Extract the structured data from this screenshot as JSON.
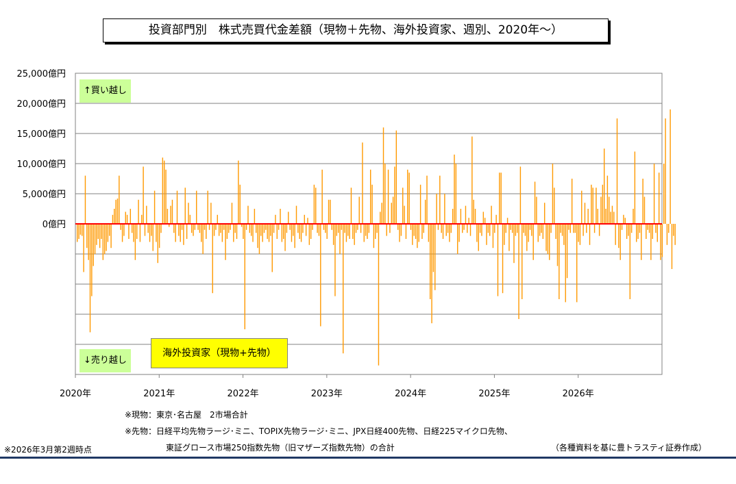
{
  "title": "投資部門別　株式売買代金差額（現物＋先物、海外投資家、週別、2020年～）",
  "badges": {
    "buy": "↑買い越し",
    "sell": "↓売り越し"
  },
  "series_label": "海外投資家（現物+先物）",
  "notes": {
    "spot": "※現物：東京･名古屋　2市場合計",
    "futures_line1": "※先物：日経平均先物ラージ･ミニ、TOPIX先物ラージ･ミニ、JPX日経400先物、日経225マイクロ先物、",
    "futures_line2": "東証グロース市場250指数先物（旧マザーズ指数先物）の合計",
    "as_of": "※2026年3月第2週時点",
    "source": "（各種資料を基に豊トラスティ証券作成）"
  },
  "colors": {
    "bars": "#ff9900",
    "zero_line": "#ff0000",
    "grid": "#808080",
    "badge": "#ccff99",
    "label_box": "#ffff00"
  },
  "chart_data": {
    "type": "bar",
    "title": "投資部門別　株式売買代金差額（現物＋先物、海外投資家、週別、2020年～）",
    "ylabel": "",
    "xlabel": "",
    "ylim": [
      -25000,
      25000
    ],
    "y_tick_labels": [
      {
        "value": 25000,
        "label": "25,000億円"
      },
      {
        "value": 20000,
        "label": "20,000億円"
      },
      {
        "value": 15000,
        "label": "15,000億円"
      },
      {
        "value": 10000,
        "label": "10,000億円"
      },
      {
        "value": 5000,
        "label": "5,000億円"
      },
      {
        "value": 0,
        "label": "0億円"
      },
      {
        "value": -5000,
        "label": ""
      },
      {
        "value": -10000,
        "label": ""
      },
      {
        "value": -15000,
        "label": ""
      },
      {
        "value": -20000,
        "label": ""
      },
      {
        "value": -25000,
        "label": ""
      }
    ],
    "x_tick_labels": [
      {
        "year": 2020,
        "label": "2020年"
      },
      {
        "year": 2021,
        "label": "2021年"
      },
      {
        "year": 2022,
        "label": "2022年"
      },
      {
        "year": 2023,
        "label": "2023年"
      },
      {
        "year": 2024,
        "label": "2024年"
      },
      {
        "year": 2025,
        "label": "2025年"
      },
      {
        "year": 2026,
        "label": "2026年"
      }
    ],
    "x_start": "2020-01",
    "x_end": "2027-01",
    "grid": true,
    "series": [
      {
        "name": "海外投資家（現物+先物）",
        "frequency": "weekly",
        "start": "2020-01 week 1",
        "values": [
          -3000,
          -2500,
          -1800,
          -2000,
          -8000,
          8000,
          -4000,
          -6000,
          -18000,
          -12000,
          -7000,
          -5000,
          -3500,
          -2500,
          -4000,
          -2500,
          -6000,
          -5000,
          -4500,
          -3000,
          -2000,
          -4000,
          1500,
          2500,
          4000,
          4200,
          8000,
          -1000,
          -3000,
          -2000,
          2000,
          1500,
          -2500,
          2500,
          -1500,
          -3000,
          -6000,
          -2500,
          4000,
          -3000,
          1500,
          9500,
          -2000,
          3000,
          -1500,
          -3000,
          -2000,
          -4500,
          5500,
          -3000,
          -6500,
          -4000,
          -1500,
          11000,
          10500,
          9000,
          2500,
          -500,
          3000,
          4000,
          -1500,
          -3000,
          5500,
          -2000,
          -3000,
          -1000,
          -3500,
          6000,
          -2500,
          3500,
          1500,
          -1500,
          -2000,
          -1000,
          5500,
          -1000,
          -1500,
          -3000,
          -5000,
          -1000,
          -2500,
          5500,
          -1000,
          3500,
          -11500,
          -2000,
          -1000,
          1500,
          -2000,
          -1500,
          -3000,
          -1000,
          -6000,
          -2500,
          -1500,
          -1000,
          3500,
          -3000,
          -1500,
          -2500,
          10500,
          6500,
          -500,
          -2500,
          -17500,
          -1000,
          3000,
          -1500,
          -2000,
          -3000,
          2500,
          -1500,
          -4000,
          -5000,
          -2000,
          -3000,
          -1500,
          -1000,
          -2500,
          -3000,
          -2000,
          -8000,
          -1500,
          1500,
          -2500,
          -1000,
          2500,
          -3000,
          -2500,
          -4500,
          -1500,
          2000,
          -1000,
          -3000,
          -2000,
          -4000,
          3000,
          -1500,
          -2500,
          -3000,
          -1500,
          1500,
          -2000,
          1000,
          -3500,
          -2500,
          -1000,
          6500,
          6000,
          -1500,
          -2000,
          -17000,
          9000,
          -1000,
          -1500,
          -2500,
          4000,
          4000,
          -1000,
          -3500,
          -12000,
          -2000,
          -1500,
          -5000,
          -1000,
          -21500,
          -1500,
          -3000,
          -2000,
          -2500,
          6000,
          -2500,
          -3500,
          -1500,
          -1000,
          4500,
          -1500,
          13500,
          -3000,
          -2000,
          -2500,
          -1500,
          9000,
          6500,
          -4000,
          -2500,
          -1500,
          -23500,
          2000,
          3500,
          16000,
          10000,
          -2000,
          9000,
          -1500,
          3500,
          4500,
          9500,
          15500,
          -1000,
          -3000,
          -2000,
          6000,
          3000,
          -2500,
          9000,
          8500,
          -1000,
          -3500,
          -2000,
          -2500,
          -4000,
          -3000,
          6500,
          -2500,
          -1500,
          4000,
          8000,
          -3000,
          -12500,
          -16500,
          -8000,
          -11000,
          5000,
          -1000,
          8000,
          -1500,
          -2500,
          5000,
          -2000,
          -1500,
          -3000,
          -1500,
          2500,
          11500,
          10000,
          -5000,
          -3000,
          2500,
          -1500,
          -1000,
          3000,
          -1500,
          1000,
          -2000,
          14500,
          4000,
          2500,
          -3000,
          -4500,
          -1500,
          -2000,
          2000,
          1000,
          -3500,
          -1500,
          -2000,
          3000,
          -4000,
          -1500,
          1500,
          -12000,
          8500,
          8500,
          -11500,
          -3500,
          -1500,
          1000,
          -4500,
          -1000,
          -1500,
          -6500,
          -2000,
          -1500,
          -15800,
          9500,
          -12500,
          -1500,
          -2000,
          -4500,
          -3000,
          -1000,
          -2000,
          -6000,
          7000,
          4500,
          -3000,
          -2000,
          -1500,
          -2500,
          3500,
          -4500,
          -5000,
          -6000,
          -1500,
          10000,
          6000,
          -2500,
          -7000,
          -12500,
          -1500,
          -2000,
          -3500,
          -13000,
          -9000,
          -1000,
          -1500,
          7500,
          -1500,
          -1500,
          -13000,
          -3000,
          -3500,
          5500,
          -2000,
          3500,
          -1500,
          2500,
          -3500,
          6500,
          6000,
          -1500,
          6000,
          2500,
          -2000,
          4500,
          6500,
          12500,
          2500,
          8000,
          4500,
          2000,
          3000,
          2000,
          -3500,
          17500,
          -4000,
          -6000,
          -1000,
          1500,
          1000,
          -2500,
          -2000,
          -12500,
          -1500,
          2500,
          12000,
          -3000,
          -2500,
          -1500,
          -6000,
          7500,
          4500,
          -2500,
          -1000,
          -1500,
          -6000,
          -2500,
          10000,
          -1500,
          -3000,
          8500,
          -6000,
          -5500,
          10000,
          17500,
          -3500,
          -1500,
          19000,
          -7500,
          -2000,
          -3500
        ]
      }
    ]
  }
}
